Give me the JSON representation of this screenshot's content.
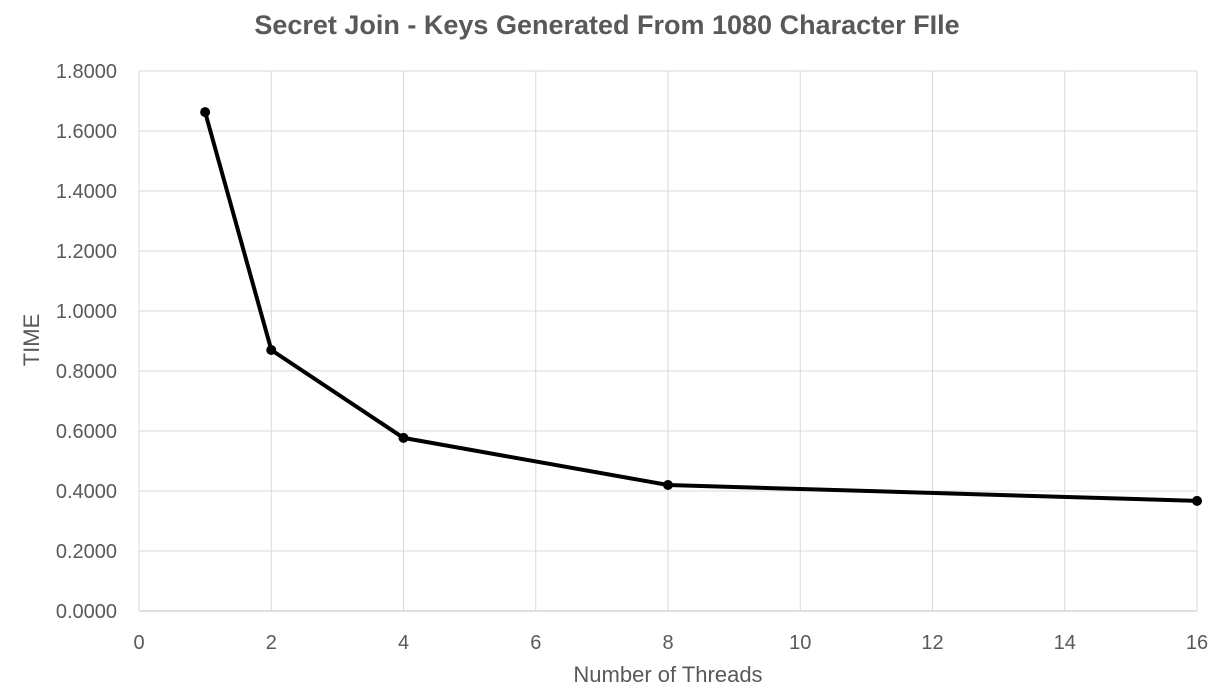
{
  "chart_data": {
    "type": "line",
    "title": "Secret Join - Keys Generated From 1080 Character FIle",
    "xlabel": "Number of Threads",
    "ylabel": "TIME",
    "xlim": [
      0,
      16
    ],
    "ylim": [
      0,
      1.8
    ],
    "x_ticks": [
      0,
      2,
      4,
      6,
      8,
      10,
      12,
      14,
      16
    ],
    "y_ticks": [
      0,
      0.2,
      0.4,
      0.6,
      0.8,
      1.0,
      1.2,
      1.4,
      1.6,
      1.8
    ],
    "y_tick_labels": [
      "0.0000",
      "0.2000",
      "0.4000",
      "0.6000",
      "0.8000",
      "1.0000",
      "1.2000",
      "1.4000",
      "1.6000",
      "1.8000"
    ],
    "grid": true,
    "legend": "none",
    "series": [
      {
        "x": [
          1,
          2,
          4,
          8,
          16
        ],
        "y": [
          1.663,
          0.87,
          0.577,
          0.42,
          0.367
        ],
        "color": "#000000"
      }
    ]
  }
}
